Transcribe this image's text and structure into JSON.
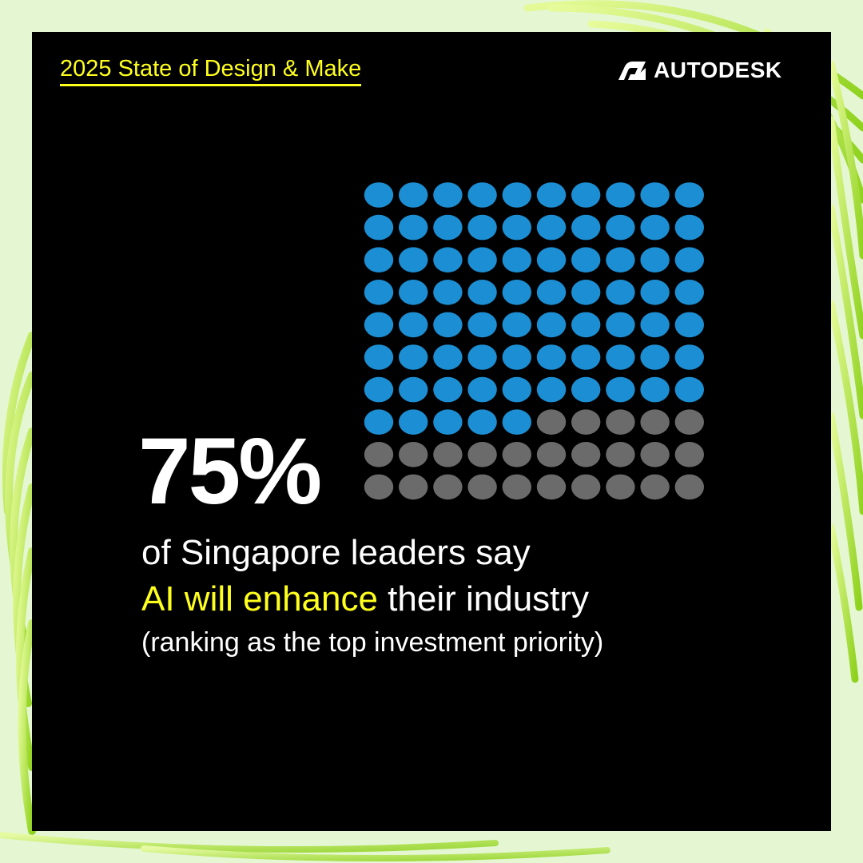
{
  "header": {
    "report_title": "2025 State of Design & Make",
    "brand_name": "AUTODESK",
    "brand_icon": "autodesk-logo-icon"
  },
  "stat": {
    "value": "75%",
    "line1": "of Singapore leaders say",
    "line2_highlight": "AI will enhance",
    "line2_rest": " their industry",
    "line3": "(ranking as the top investment priority)"
  },
  "colors": {
    "background": "#e4f7d2",
    "panel": "#000000",
    "accent_yellow": "#ffff1e",
    "filled_dot": "#1c8fd4",
    "empty_dot": "#6b6b6b",
    "text": "#ffffff",
    "decor_green": "#b8e830"
  },
  "chart_data": {
    "type": "waffle",
    "rows": 10,
    "columns": 10,
    "total": 100,
    "filled": 75,
    "filled_color": "#1c8fd4",
    "empty_color": "#6b6b6b"
  }
}
